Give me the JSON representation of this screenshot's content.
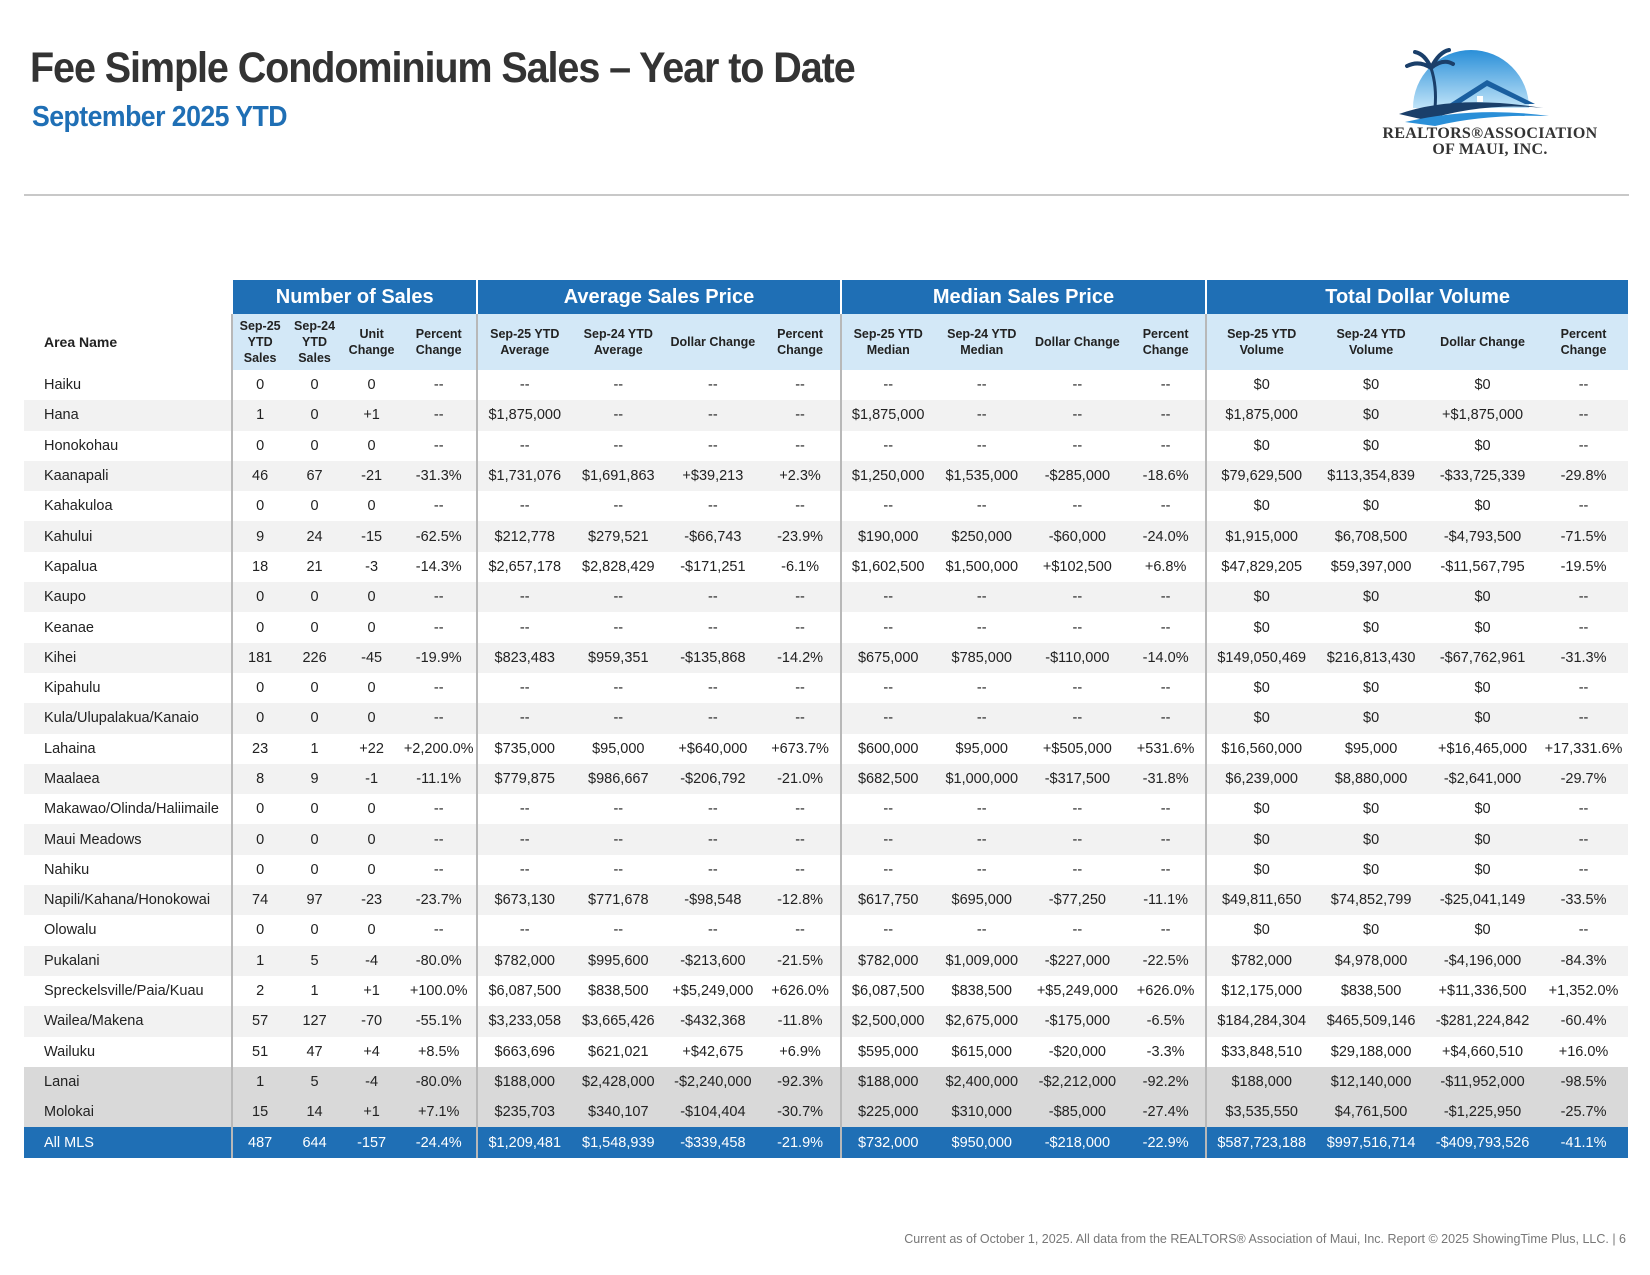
{
  "header": {
    "title": "Fee Simple Condominium Sales – Year to Date",
    "subtitle": "September 2025 YTD"
  },
  "logo": {
    "line1": "REALTORS®ASSOCIATION",
    "line2": "OF MAUI, INC.",
    "icon": "palm-tree-house-icon"
  },
  "table": {
    "area_header": "Area Name",
    "groups": [
      "Number of Sales",
      "Average Sales Price",
      "Median Sales Price",
      "Total Dollar Volume"
    ],
    "columns": [
      "Sep-25 YTD Sales",
      "Sep-24 YTD Sales",
      "Unit Change",
      "Percent Change",
      "Sep-25 YTD Average",
      "Sep-24 YTD Average",
      "Dollar Change",
      "Percent Change",
      "Sep-25 YTD Median",
      "Sep-24 YTD Median",
      "Dollar Change",
      "Percent Change",
      "Sep-25 YTD Volume",
      "Sep-24 YTD Volume",
      "Dollar Change",
      "Percent Change"
    ],
    "rows": [
      {
        "area": "Haiku",
        "values": [
          "0",
          "0",
          "0",
          "--",
          "--",
          "--",
          "--",
          "--",
          "--",
          "--",
          "--",
          "--",
          "$0",
          "$0",
          "$0",
          "--"
        ]
      },
      {
        "area": "Hana",
        "values": [
          "1",
          "0",
          "+1",
          "--",
          "$1,875,000",
          "--",
          "--",
          "--",
          "$1,875,000",
          "--",
          "--",
          "--",
          "$1,875,000",
          "$0",
          "+$1,875,000",
          "--"
        ]
      },
      {
        "area": "Honokohau",
        "values": [
          "0",
          "0",
          "0",
          "--",
          "--",
          "--",
          "--",
          "--",
          "--",
          "--",
          "--",
          "--",
          "$0",
          "$0",
          "$0",
          "--"
        ]
      },
      {
        "area": "Kaanapali",
        "values": [
          "46",
          "67",
          "-21",
          "-31.3%",
          "$1,731,076",
          "$1,691,863",
          "+$39,213",
          "+2.3%",
          "$1,250,000",
          "$1,535,000",
          "-$285,000",
          "-18.6%",
          "$79,629,500",
          "$113,354,839",
          "-$33,725,339",
          "-29.8%"
        ]
      },
      {
        "area": "Kahakuloa",
        "values": [
          "0",
          "0",
          "0",
          "--",
          "--",
          "--",
          "--",
          "--",
          "--",
          "--",
          "--",
          "--",
          "$0",
          "$0",
          "$0",
          "--"
        ]
      },
      {
        "area": "Kahului",
        "values": [
          "9",
          "24",
          "-15",
          "-62.5%",
          "$212,778",
          "$279,521",
          "-$66,743",
          "-23.9%",
          "$190,000",
          "$250,000",
          "-$60,000",
          "-24.0%",
          "$1,915,000",
          "$6,708,500",
          "-$4,793,500",
          "-71.5%"
        ]
      },
      {
        "area": "Kapalua",
        "values": [
          "18",
          "21",
          "-3",
          "-14.3%",
          "$2,657,178",
          "$2,828,429",
          "-$171,251",
          "-6.1%",
          "$1,602,500",
          "$1,500,000",
          "+$102,500",
          "+6.8%",
          "$47,829,205",
          "$59,397,000",
          "-$11,567,795",
          "-19.5%"
        ]
      },
      {
        "area": "Kaupo",
        "values": [
          "0",
          "0",
          "0",
          "--",
          "--",
          "--",
          "--",
          "--",
          "--",
          "--",
          "--",
          "--",
          "$0",
          "$0",
          "$0",
          "--"
        ]
      },
      {
        "area": "Keanae",
        "values": [
          "0",
          "0",
          "0",
          "--",
          "--",
          "--",
          "--",
          "--",
          "--",
          "--",
          "--",
          "--",
          "$0",
          "$0",
          "$0",
          "--"
        ]
      },
      {
        "area": "Kihei",
        "values": [
          "181",
          "226",
          "-45",
          "-19.9%",
          "$823,483",
          "$959,351",
          "-$135,868",
          "-14.2%",
          "$675,000",
          "$785,000",
          "-$110,000",
          "-14.0%",
          "$149,050,469",
          "$216,813,430",
          "-$67,762,961",
          "-31.3%"
        ]
      },
      {
        "area": "Kipahulu",
        "values": [
          "0",
          "0",
          "0",
          "--",
          "--",
          "--",
          "--",
          "--",
          "--",
          "--",
          "--",
          "--",
          "$0",
          "$0",
          "$0",
          "--"
        ]
      },
      {
        "area": "Kula/Ulupalakua/Kanaio",
        "values": [
          "0",
          "0",
          "0",
          "--",
          "--",
          "--",
          "--",
          "--",
          "--",
          "--",
          "--",
          "--",
          "$0",
          "$0",
          "$0",
          "--"
        ]
      },
      {
        "area": "Lahaina",
        "values": [
          "23",
          "1",
          "+22",
          "+2,200.0%",
          "$735,000",
          "$95,000",
          "+$640,000",
          "+673.7%",
          "$600,000",
          "$95,000",
          "+$505,000",
          "+531.6%",
          "$16,560,000",
          "$95,000",
          "+$16,465,000",
          "+17,331.6%"
        ]
      },
      {
        "area": "Maalaea",
        "values": [
          "8",
          "9",
          "-1",
          "-11.1%",
          "$779,875",
          "$986,667",
          "-$206,792",
          "-21.0%",
          "$682,500",
          "$1,000,000",
          "-$317,500",
          "-31.8%",
          "$6,239,000",
          "$8,880,000",
          "-$2,641,000",
          "-29.7%"
        ]
      },
      {
        "area": "Makawao/Olinda/Haliimaile",
        "values": [
          "0",
          "0",
          "0",
          "--",
          "--",
          "--",
          "--",
          "--",
          "--",
          "--",
          "--",
          "--",
          "$0",
          "$0",
          "$0",
          "--"
        ]
      },
      {
        "area": "Maui Meadows",
        "values": [
          "0",
          "0",
          "0",
          "--",
          "--",
          "--",
          "--",
          "--",
          "--",
          "--",
          "--",
          "--",
          "$0",
          "$0",
          "$0",
          "--"
        ]
      },
      {
        "area": "Nahiku",
        "values": [
          "0",
          "0",
          "0",
          "--",
          "--",
          "--",
          "--",
          "--",
          "--",
          "--",
          "--",
          "--",
          "$0",
          "$0",
          "$0",
          "--"
        ]
      },
      {
        "area": "Napili/Kahana/Honokowai",
        "values": [
          "74",
          "97",
          "-23",
          "-23.7%",
          "$673,130",
          "$771,678",
          "-$98,548",
          "-12.8%",
          "$617,750",
          "$695,000",
          "-$77,250",
          "-11.1%",
          "$49,811,650",
          "$74,852,799",
          "-$25,041,149",
          "-33.5%"
        ]
      },
      {
        "area": "Olowalu",
        "values": [
          "0",
          "0",
          "0",
          "--",
          "--",
          "--",
          "--",
          "--",
          "--",
          "--",
          "--",
          "--",
          "$0",
          "$0",
          "$0",
          "--"
        ]
      },
      {
        "area": "Pukalani",
        "values": [
          "1",
          "5",
          "-4",
          "-80.0%",
          "$782,000",
          "$995,600",
          "-$213,600",
          "-21.5%",
          "$782,000",
          "$1,009,000",
          "-$227,000",
          "-22.5%",
          "$782,000",
          "$4,978,000",
          "-$4,196,000",
          "-84.3%"
        ]
      },
      {
        "area": "Spreckelsville/Paia/Kuau",
        "values": [
          "2",
          "1",
          "+1",
          "+100.0%",
          "$6,087,500",
          "$838,500",
          "+$5,249,000",
          "+626.0%",
          "$6,087,500",
          "$838,500",
          "+$5,249,000",
          "+626.0%",
          "$12,175,000",
          "$838,500",
          "+$11,336,500",
          "+1,352.0%"
        ]
      },
      {
        "area": "Wailea/Makena",
        "values": [
          "57",
          "127",
          "-70",
          "-55.1%",
          "$3,233,058",
          "$3,665,426",
          "-$432,368",
          "-11.8%",
          "$2,500,000",
          "$2,675,000",
          "-$175,000",
          "-6.5%",
          "$184,284,304",
          "$465,509,146",
          "-$281,224,842",
          "-60.4%"
        ]
      },
      {
        "area": "Wailuku",
        "values": [
          "51",
          "47",
          "+4",
          "+8.5%",
          "$663,696",
          "$621,021",
          "+$42,675",
          "+6.9%",
          "$595,000",
          "$615,000",
          "-$20,000",
          "-3.3%",
          "$33,848,510",
          "$29,188,000",
          "+$4,660,510",
          "+16.0%"
        ]
      },
      {
        "area": "Lanai",
        "type": "island",
        "values": [
          "1",
          "5",
          "-4",
          "-80.0%",
          "$188,000",
          "$2,428,000",
          "-$2,240,000",
          "-92.3%",
          "$188,000",
          "$2,400,000",
          "-$2,212,000",
          "-92.2%",
          "$188,000",
          "$12,140,000",
          "-$11,952,000",
          "-98.5%"
        ]
      },
      {
        "area": "Molokai",
        "type": "island",
        "values": [
          "15",
          "14",
          "+1",
          "+7.1%",
          "$235,703",
          "$340,107",
          "-$104,404",
          "-30.7%",
          "$225,000",
          "$310,000",
          "-$85,000",
          "-27.4%",
          "$3,535,550",
          "$4,761,500",
          "-$1,225,950",
          "-25.7%"
        ]
      },
      {
        "area": "All MLS",
        "type": "total",
        "values": [
          "487",
          "644",
          "-157",
          "-24.4%",
          "$1,209,481",
          "$1,548,939",
          "-$339,458",
          "-21.9%",
          "$732,000",
          "$950,000",
          "-$218,000",
          "-22.9%",
          "$587,723,188",
          "$997,516,714",
          "-$409,793,526",
          "-41.1%"
        ]
      }
    ]
  },
  "footer": {
    "text": "Current as of October 1, 2025. All data from the REALTORS® Association of Maui, Inc. Report © 2025 ShowingTime Plus, LLC.  |  6"
  },
  "colors": {
    "accent": "#1f6fb5",
    "subheader": "#d3e8f7",
    "stripe": "#f2f2f2",
    "island": "#d9d9d9"
  }
}
